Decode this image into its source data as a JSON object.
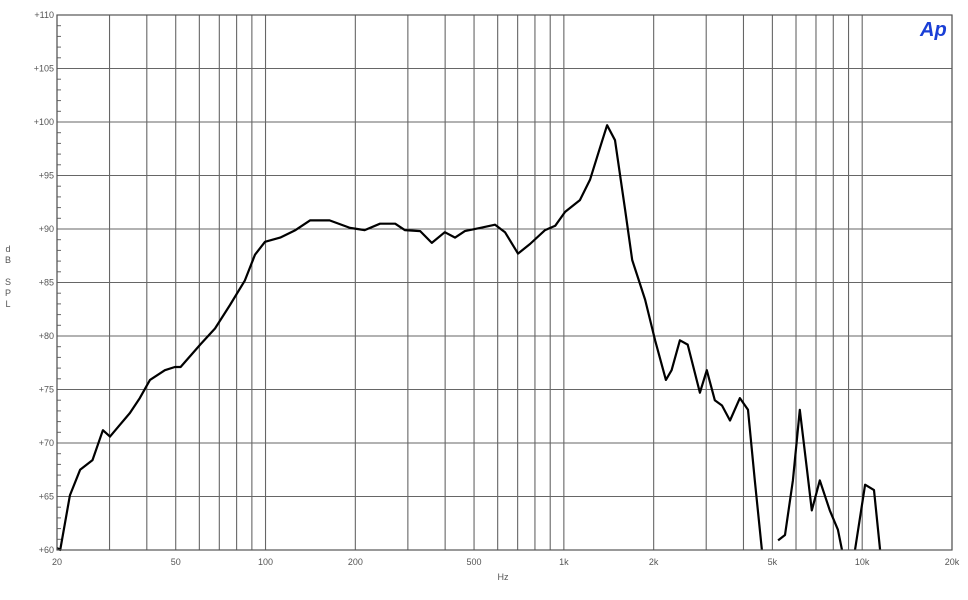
{
  "chart_data": {
    "type": "line",
    "title": "",
    "xlabel": "Hz",
    "ylabel": "dB SPL",
    "xscale": "log",
    "xlim": [
      20,
      20000
    ],
    "ylim": [
      60,
      110
    ],
    "grid": true,
    "logo": "Ap",
    "colors": {
      "line": "#000000",
      "grid": "#555555",
      "logo": "#1a3fd6"
    },
    "x_ticks": [
      {
        "value": 20,
        "label": "20"
      },
      {
        "value": 50,
        "label": "50"
      },
      {
        "value": 100,
        "label": "100"
      },
      {
        "value": 200,
        "label": "200"
      },
      {
        "value": 500,
        "label": "500"
      },
      {
        "value": 1000,
        "label": "1k"
      },
      {
        "value": 2000,
        "label": "2k"
      },
      {
        "value": 5000,
        "label": "5k"
      },
      {
        "value": 10000,
        "label": "10k"
      },
      {
        "value": 20000,
        "label": "20k"
      }
    ],
    "x_grid": [
      20,
      30,
      40,
      50,
      60,
      70,
      80,
      90,
      100,
      200,
      300,
      400,
      500,
      600,
      700,
      800,
      900,
      1000,
      2000,
      3000,
      4000,
      5000,
      6000,
      7000,
      8000,
      9000,
      10000,
      20000
    ],
    "y_ticks": [
      {
        "value": 60,
        "label": "+60"
      },
      {
        "value": 65,
        "label": "+65"
      },
      {
        "value": 70,
        "label": "+70"
      },
      {
        "value": 75,
        "label": "+75"
      },
      {
        "value": 80,
        "label": "+80"
      },
      {
        "value": 85,
        "label": "+85"
      },
      {
        "value": 90,
        "label": "+90"
      },
      {
        "value": 95,
        "label": "+95"
      },
      {
        "value": 100,
        "label": "+100"
      },
      {
        "value": 105,
        "label": "+105"
      },
      {
        "value": 110,
        "label": "+110"
      }
    ],
    "series": [
      {
        "x": [
          20,
          20.5,
          22.1,
          23.9,
          26.3,
          28.5,
          30.1,
          32.5,
          35.1,
          37.9,
          41,
          46,
          49.7,
          51.9,
          60.4,
          67.7,
          76,
          85.3,
          92.2,
          99.6,
          112,
          126,
          141,
          164,
          192,
          215,
          242,
          272,
          293,
          330,
          361,
          399,
          432,
          466,
          524,
          588,
          635,
          702,
          770,
          865,
          935,
          1010,
          1132,
          1224,
          1322,
          1396,
          1484,
          1604,
          1694,
          1872,
          2022,
          2198,
          2297,
          2449,
          2600,
          2858,
          3015,
          3206,
          3389,
          3605,
          3891,
          4141,
          4366,
          4610,
          null,
          5226,
          5510,
          5860,
          6180,
          6530,
          6780,
          7210,
          7790,
          8290,
          8560,
          null,
          9460,
          10230,
          10950,
          11480
        ],
        "y": [
          60.2,
          60,
          65.1,
          67.5,
          68.4,
          71.2,
          70.6,
          71.7,
          72.8,
          74.2,
          75.9,
          76.8,
          77.1,
          77.1,
          79.2,
          80.7,
          82.9,
          85.2,
          87.6,
          88.8,
          89.2,
          89.9,
          90.8,
          90.8,
          90.1,
          89.9,
          90.5,
          90.5,
          89.9,
          89.8,
          88.7,
          89.7,
          89.2,
          89.8,
          90.1,
          90.4,
          89.7,
          87.7,
          88.6,
          89.9,
          90.3,
          91.6,
          92.7,
          94.6,
          97.6,
          99.7,
          98.3,
          91.8,
          87.1,
          83.4,
          79.6,
          75.9,
          76.8,
          79.6,
          79.2,
          74.7,
          76.8,
          74,
          73.5,
          72.1,
          74.2,
          73.1,
          66.5,
          60,
          null,
          60.9,
          61.4,
          66.5,
          73.1,
          67.5,
          63.7,
          66.5,
          63.7,
          61.9,
          60,
          null,
          60,
          66.1,
          65.6,
          60
        ]
      }
    ]
  }
}
